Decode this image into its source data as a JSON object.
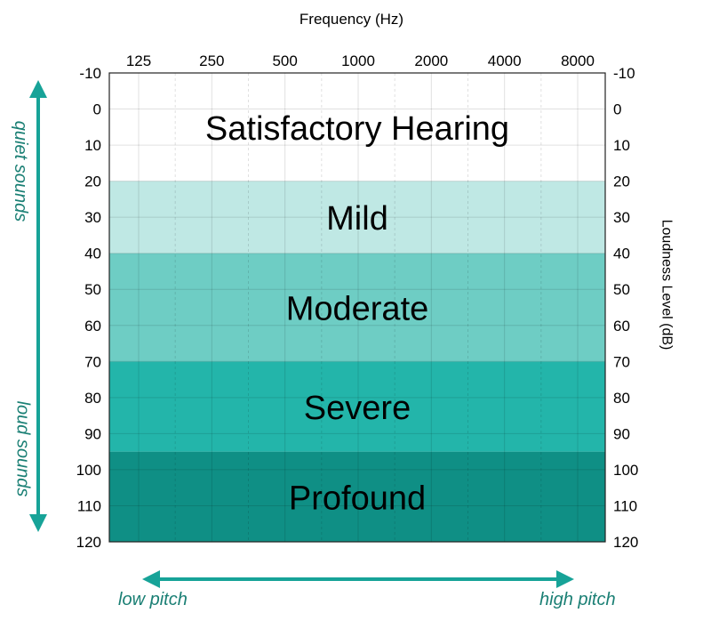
{
  "chart_data": {
    "type": "heatmap",
    "title": "Frequency (Hz)",
    "ylabel": "Loudness Level (dB)",
    "x_ticks": [
      "125",
      "250",
      "500",
      "1000",
      "2000",
      "4000",
      "8000"
    ],
    "y_ticks": [
      "-10",
      "0",
      "10",
      "20",
      "30",
      "40",
      "50",
      "60",
      "70",
      "80",
      "90",
      "100",
      "110",
      "120"
    ],
    "ylim": [
      -10,
      120
    ],
    "y_inverted": true,
    "bands": [
      {
        "label": "Satisfactory Hearing",
        "from": -10,
        "to": 20,
        "color": "#ffffff"
      },
      {
        "label": "Mild",
        "from": 20,
        "to": 40,
        "color": "#bfe8e4"
      },
      {
        "label": "Moderate",
        "from": 40,
        "to": 70,
        "color": "#6ecdc4"
      },
      {
        "label": "Severe",
        "from": 70,
        "to": 95,
        "color": "#23b5aa"
      },
      {
        "label": "Profound",
        "from": 95,
        "to": 120,
        "color": "#0f8f85"
      }
    ],
    "grid": true,
    "left_arrow_labels": {
      "top": "quiet sounds",
      "bottom": "loud sounds"
    },
    "bottom_arrow_labels": {
      "left": "low pitch",
      "right": "high pitch"
    },
    "arrow_color": "#17a398"
  }
}
